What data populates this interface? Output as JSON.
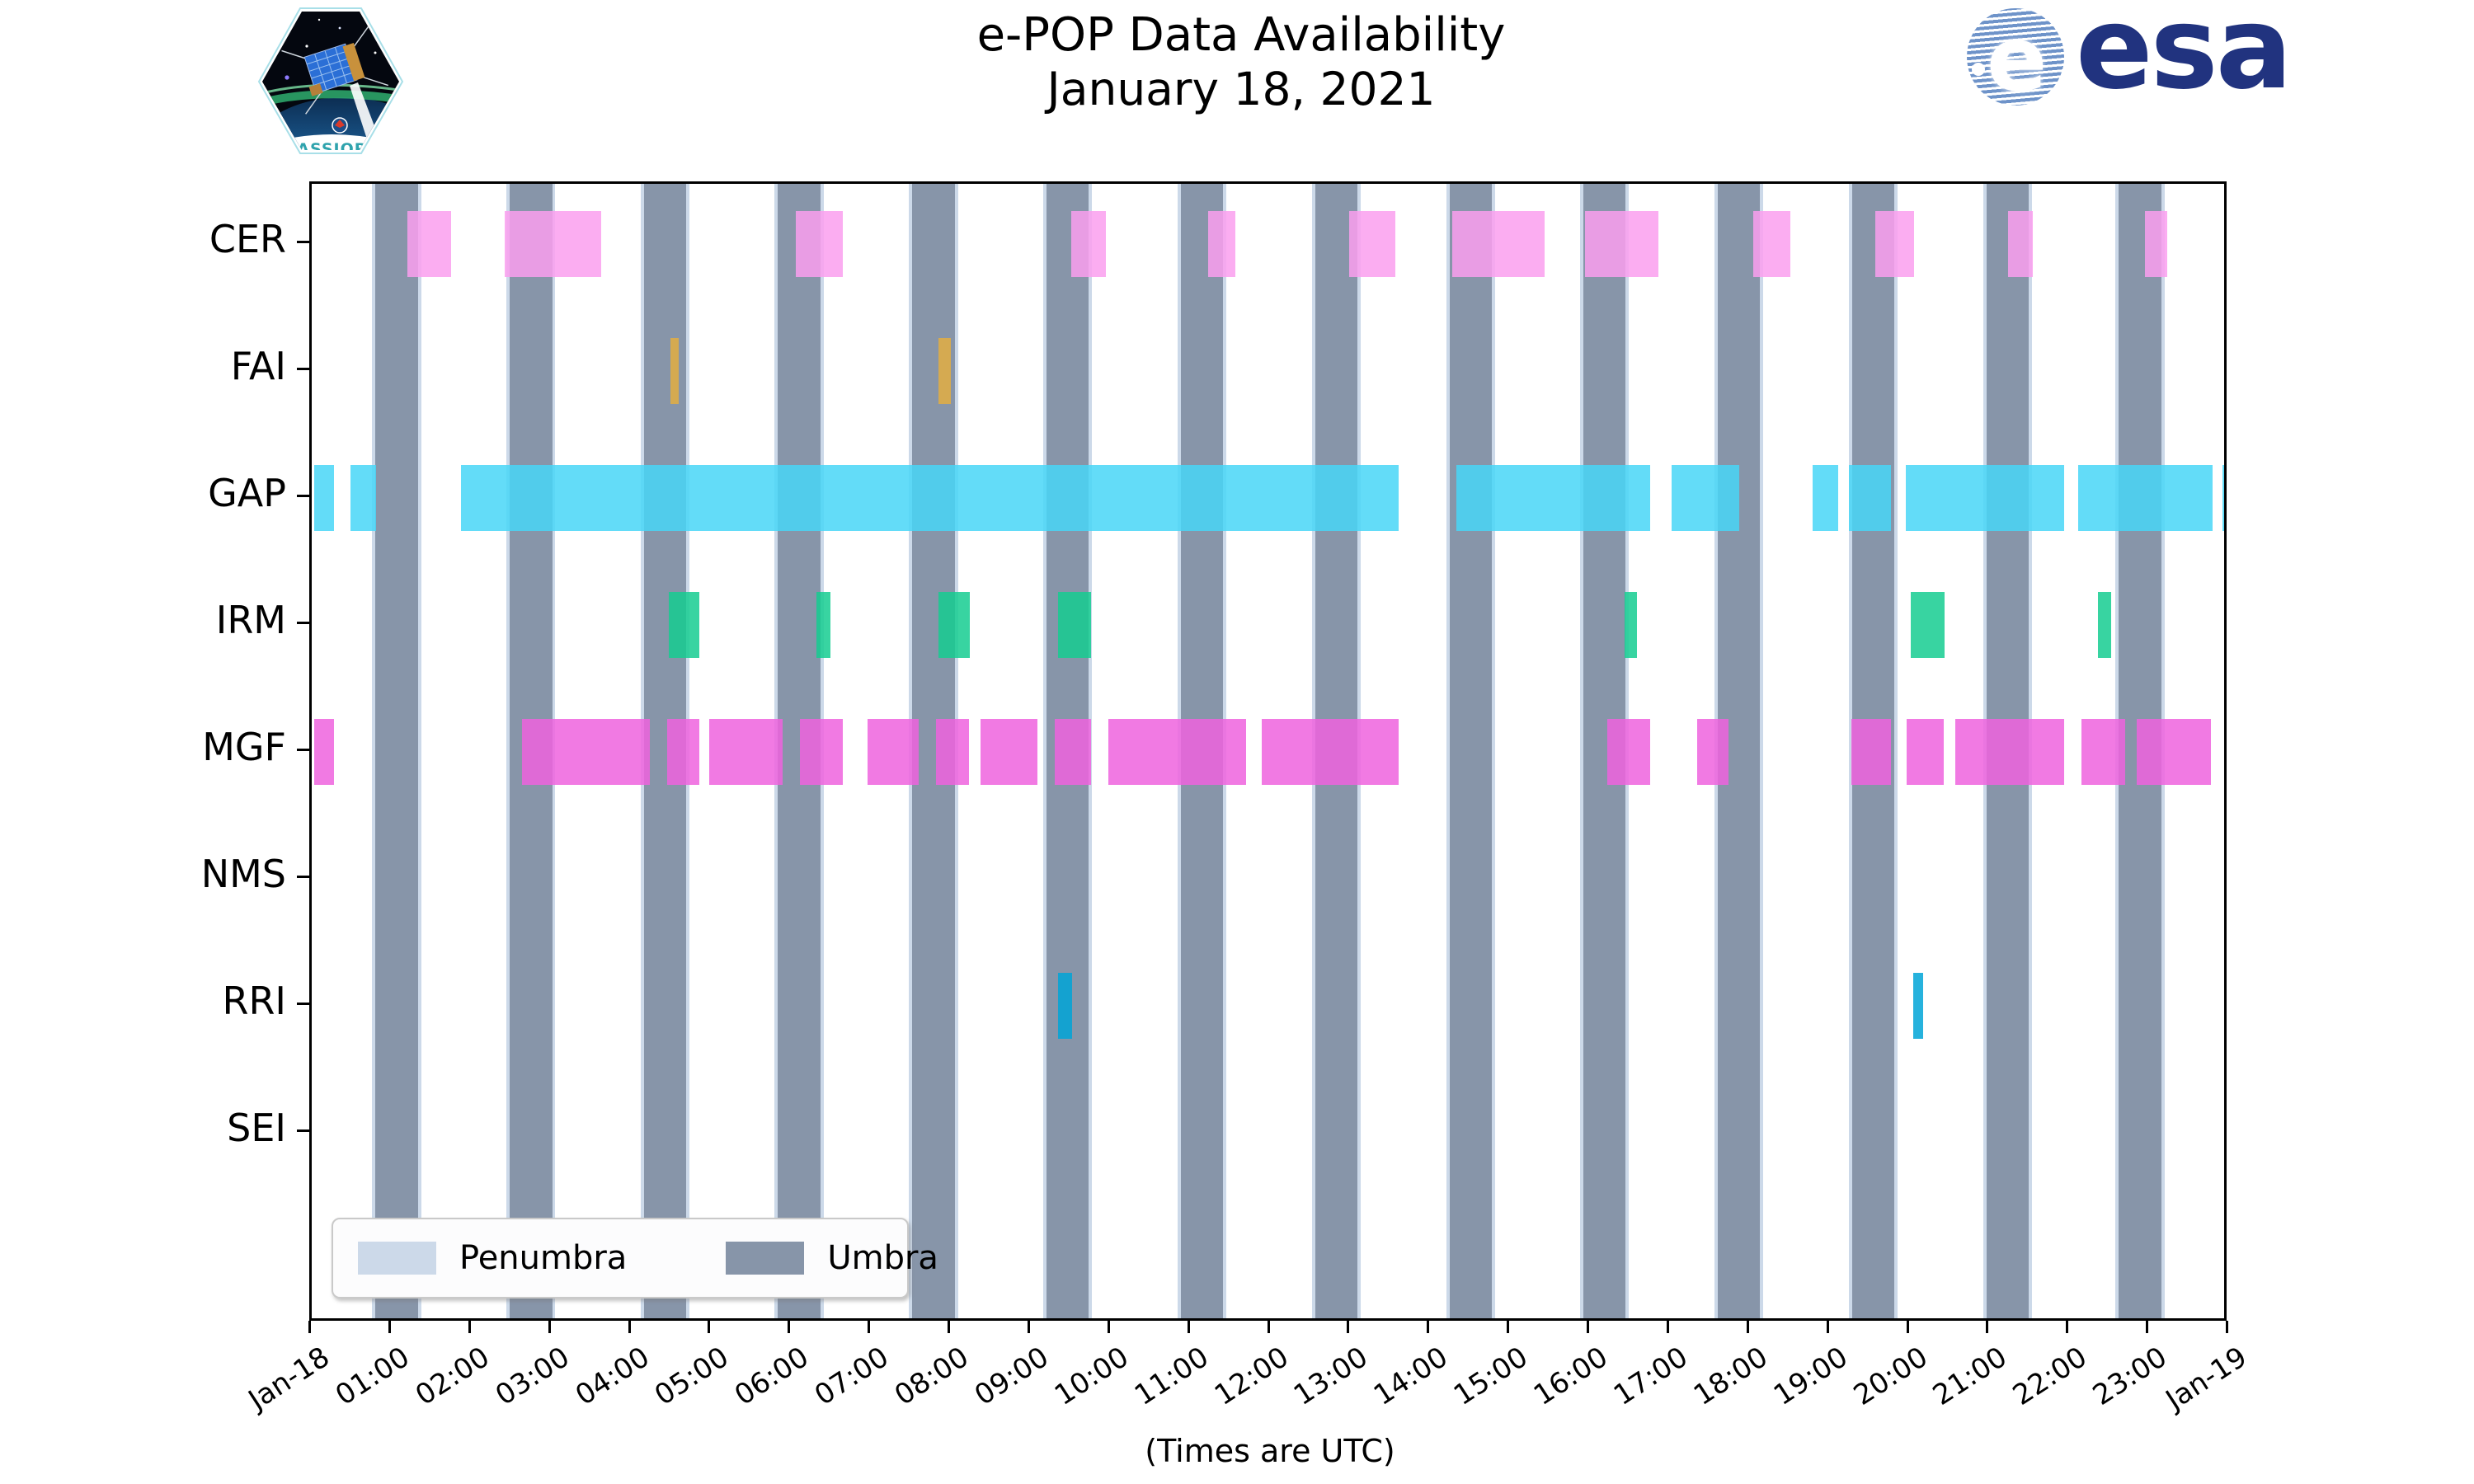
{
  "header": {
    "title": "e-POP Data Availability",
    "subtitle": "January 18, 2021",
    "patch_name": "CASSIOPE",
    "esa_wordmark": "esa"
  },
  "footer": {
    "caption": "(Times are UTC)"
  },
  "legend": {
    "items": [
      {
        "label": "Penumbra",
        "color": "#ccd9e9"
      },
      {
        "label": "Umbra",
        "color": "#8795a9"
      }
    ]
  },
  "chart_data": {
    "type": "gantt-timeline",
    "title": "e-POP Data Availability",
    "subtitle": "January 18, 2021",
    "grid": "off",
    "x_axis": {
      "note": "(Times are UTC)",
      "range_hours": [
        0,
        24
      ],
      "tick_labels": [
        "Jan-18",
        "01:00",
        "02:00",
        "03:00",
        "04:00",
        "05:00",
        "06:00",
        "07:00",
        "08:00",
        "09:00",
        "10:00",
        "11:00",
        "12:00",
        "13:00",
        "14:00",
        "15:00",
        "16:00",
        "17:00",
        "18:00",
        "19:00",
        "20:00",
        "21:00",
        "22:00",
        "23:00",
        "Jan-19"
      ]
    },
    "rows": [
      "CER",
      "FAI",
      "GAP",
      "IRM",
      "MGF",
      "NMS",
      "RRI",
      "SEI"
    ],
    "series": [
      {
        "name": "CER",
        "color": "#fa9fee",
        "intervals": [
          [
            1.2,
            1.74
          ],
          [
            2.42,
            3.62
          ],
          [
            6.06,
            6.65
          ],
          [
            9.51,
            9.94
          ],
          [
            11.22,
            11.56
          ],
          [
            12.99,
            13.56
          ],
          [
            14.28,
            15.43
          ],
          [
            15.94,
            16.86
          ],
          [
            18.04,
            18.51
          ],
          [
            19.57,
            20.06
          ],
          [
            21.23,
            21.54
          ],
          [
            22.95,
            23.23
          ]
        ]
      },
      {
        "name": "FAI",
        "color": "#e3ae42",
        "intervals": [
          [
            4.49,
            4.59
          ],
          [
            7.85,
            8.0
          ]
        ]
      },
      {
        "name": "GAP",
        "color": "#48d6f7",
        "intervals": [
          [
            0.03,
            0.28
          ],
          [
            0.49,
            0.81
          ],
          [
            1.87,
            13.61
          ],
          [
            14.33,
            16.75
          ],
          [
            17.02,
            17.87
          ],
          [
            18.79,
            19.11
          ],
          [
            19.24,
            19.77
          ],
          [
            19.95,
            21.94
          ],
          [
            22.11,
            23.79
          ],
          [
            23.92,
            24.0
          ]
        ]
      },
      {
        "name": "IRM",
        "color": "#15cc90",
        "intervals": [
          [
            4.47,
            4.85
          ],
          [
            6.32,
            6.49
          ],
          [
            7.85,
            8.24
          ],
          [
            9.34,
            9.75
          ],
          [
            16.43,
            16.59
          ],
          [
            20.02,
            20.44
          ],
          [
            22.36,
            22.52
          ]
        ]
      },
      {
        "name": "MGF",
        "color": "#ee63de",
        "intervals": [
          [
            0.03,
            0.28
          ],
          [
            2.63,
            4.23
          ],
          [
            4.45,
            4.85
          ],
          [
            4.98,
            5.89
          ],
          [
            6.11,
            6.65
          ],
          [
            6.96,
            7.6
          ],
          [
            7.81,
            8.23
          ],
          [
            8.37,
            9.08
          ],
          [
            9.3,
            9.75
          ],
          [
            9.97,
            11.7
          ],
          [
            11.89,
            13.61
          ],
          [
            16.22,
            16.75
          ],
          [
            17.34,
            17.73
          ],
          [
            19.27,
            19.77
          ],
          [
            19.96,
            20.43
          ],
          [
            20.57,
            21.94
          ],
          [
            22.15,
            22.7
          ],
          [
            22.84,
            23.77
          ]
        ]
      },
      {
        "name": "NMS",
        "color": "#b0b0b0",
        "intervals": []
      },
      {
        "name": "RRI",
        "color": "#00a5d7",
        "intervals": [
          [
            9.34,
            9.52
          ],
          [
            20.05,
            20.17
          ]
        ]
      },
      {
        "name": "SEI",
        "color": "#b0b0b0",
        "intervals": []
      }
    ],
    "eclipse": {
      "umbra_color": "#8795a9",
      "penumbra_color": "#ccd9e9",
      "penumbra_margin_hours": 0.04,
      "umbra_windows_hours": [
        [
          0.79,
          1.33
        ],
        [
          2.48,
          3.01
        ],
        [
          4.16,
          4.69
        ],
        [
          5.83,
          6.37
        ],
        [
          7.51,
          8.05
        ],
        [
          9.2,
          9.72
        ],
        [
          10.88,
          11.41
        ],
        [
          12.56,
          13.09
        ],
        [
          14.24,
          14.77
        ],
        [
          15.92,
          16.44
        ],
        [
          17.6,
          18.13
        ],
        [
          19.28,
          19.81
        ],
        [
          20.96,
          21.49
        ],
        [
          22.62,
          23.15
        ]
      ]
    },
    "legend_entries": [
      "Penumbra",
      "Umbra"
    ]
  }
}
